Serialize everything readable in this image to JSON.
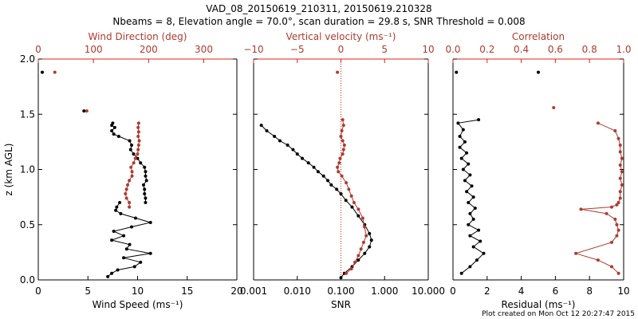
{
  "header": {
    "title": "VAD_08_20150619_210311, 20150619.210328",
    "subtitle": "Nbeams = 8, Elevation angle = 70.0°, scan duration = 29.8 s, SNR Threshold = 0.008"
  },
  "footer": "Plot created on Mon Oct 12 20:27:47 2015",
  "colors": {
    "primary": "#000000",
    "secondary": "#b03a2e",
    "secondary_axis": "#e0201a"
  },
  "chart_data": [
    {
      "type": "line",
      "ylabel": "z (km AGL)",
      "ylim": [
        0,
        2.0
      ],
      "yticks": [
        "0.0",
        "0.5",
        "1.0",
        "1.5",
        "2.0"
      ],
      "bottom_axis": {
        "label": "Wind Speed (ms⁻¹)",
        "lim": [
          0,
          20
        ],
        "ticks": [
          "0",
          "5",
          "10",
          "15",
          "20"
        ]
      },
      "top_axis": {
        "label": "Wind Direction (deg)",
        "lim": [
          0,
          360
        ],
        "ticks": [
          "0",
          "100",
          "200",
          "300"
        ]
      },
      "series": [
        {
          "name": "Wind Speed",
          "axis": "bottom",
          "x": [
            7.5,
            7.4,
            7.7,
            7.4,
            7.6,
            8.1,
            9.2,
            9.4,
            9.3,
            9.6,
            10.0,
            10.3,
            10.7,
            10.8,
            10.8,
            10.9,
            10.6,
            10.7,
            10.7,
            10.8,
            10.8
          ],
          "y": [
            1.42,
            1.4,
            1.38,
            1.35,
            1.32,
            1.3,
            1.26,
            1.22,
            1.18,
            1.14,
            1.1,
            1.06,
            1.02,
            0.98,
            0.94,
            0.9,
            0.86,
            0.82,
            0.78,
            0.74,
            0.7
          ]
        },
        {
          "name": "Wind Speed low",
          "axis": "bottom",
          "x": [
            8.2,
            7.9,
            7.8,
            8.3,
            9.8,
            11.3,
            9.4,
            7.6,
            8.6,
            7.4,
            9.2,
            8.9,
            11.3,
            8.6,
            10.3,
            9.7,
            8.0,
            7.4,
            7.0
          ],
          "y": [
            0.7,
            0.66,
            0.63,
            0.6,
            0.56,
            0.52,
            0.48,
            0.44,
            0.4,
            0.36,
            0.32,
            0.28,
            0.24,
            0.2,
            0.16,
            0.12,
            0.09,
            0.06,
            0.03
          ]
        },
        {
          "name": "Wind Direction",
          "axis": "top",
          "x": [
            182,
            181,
            182,
            181,
            183,
            182,
            181,
            180,
            176,
            173,
            168,
            170,
            170,
            165,
            162,
            160,
            158,
            160,
            165,
            165
          ],
          "y": [
            1.42,
            1.38,
            1.34,
            1.3,
            1.26,
            1.22,
            1.18,
            1.14,
            1.1,
            1.06,
            1.02,
            0.98,
            0.94,
            0.9,
            0.86,
            0.82,
            0.78,
            0.74,
            0.7,
            0.66
          ]
        }
      ],
      "isolated_points": [
        {
          "axis": "bottom",
          "x": 0.4,
          "y": 1.88
        },
        {
          "axis": "top",
          "x": 30,
          "y": 1.88
        },
        {
          "axis": "bottom",
          "x": 4.6,
          "y": 1.53
        },
        {
          "axis": "top",
          "x": 88,
          "y": 1.53
        }
      ]
    },
    {
      "type": "line",
      "bottom_axis": {
        "label": "SNR",
        "scale": "log",
        "lim": [
          0.001,
          10.0
        ],
        "ticks": [
          "0.001",
          "0.010",
          "0.100",
          "1.000",
          "10.000"
        ]
      },
      "top_axis": {
        "label": "Vertical velocity (ms⁻¹)",
        "lim": [
          -10,
          10
        ],
        "ticks": [
          "−10",
          "−5",
          "0",
          "5",
          "10"
        ]
      },
      "series": [
        {
          "name": "SNR",
          "axis": "bottom",
          "x": [
            0.0015,
            0.002,
            0.003,
            0.004,
            0.006,
            0.008,
            0.01,
            0.013,
            0.018,
            0.024,
            0.03,
            0.04,
            0.05,
            0.06,
            0.08,
            0.1,
            0.13,
            0.18,
            0.25,
            0.35,
            0.45,
            0.5,
            0.45,
            0.35,
            0.25,
            0.18,
            0.12,
            0.1
          ],
          "y": [
            1.4,
            1.35,
            1.3,
            1.26,
            1.22,
            1.18,
            1.14,
            1.1,
            1.06,
            1.02,
            0.98,
            0.94,
            0.9,
            0.86,
            0.82,
            0.78,
            0.72,
            0.66,
            0.58,
            0.5,
            0.42,
            0.36,
            0.3,
            0.24,
            0.18,
            0.12,
            0.06,
            0.02
          ]
        },
        {
          "name": "Vertical velocity",
          "axis": "top",
          "x": [
            0.2,
            0.3,
            0.1,
            0.0,
            0.2,
            0.4,
            0.3,
            0.2,
            -0.1,
            -0.2,
            -0.4,
            -0.3,
            0.1,
            0.6,
            0.9,
            1.2,
            1.5,
            2.0,
            2.5,
            2.7,
            2.9,
            2.6,
            2.3,
            2.0,
            1.6,
            1.2,
            0.6
          ],
          "y": [
            1.45,
            1.4,
            1.35,
            1.3,
            1.26,
            1.22,
            1.18,
            1.14,
            1.1,
            1.06,
            1.02,
            0.98,
            0.94,
            0.88,
            0.82,
            0.76,
            0.7,
            0.64,
            0.56,
            0.48,
            0.4,
            0.34,
            0.28,
            0.22,
            0.16,
            0.1,
            0.06
          ]
        }
      ],
      "isolated_points": [
        {
          "axis": "top",
          "x": -0.4,
          "y": 1.88
        }
      ]
    },
    {
      "type": "line",
      "bottom_axis": {
        "label": "Residual (ms⁻¹)",
        "lim": [
          0,
          10
        ],
        "ticks": [
          "0",
          "2",
          "4",
          "6",
          "8",
          "10"
        ]
      },
      "top_axis": {
        "label": "Correlation",
        "lim": [
          0,
          1.0
        ],
        "ticks": [
          "0.0",
          "0.2",
          "0.4",
          "0.6",
          "0.8",
          "1.0"
        ]
      },
      "series": [
        {
          "name": "Residual",
          "axis": "bottom",
          "x": [
            1.5,
            0.3,
            0.6,
            0.4,
            0.7,
            0.4,
            0.8,
            0.5,
            0.9,
            0.6,
            1.0,
            0.7,
            1.1,
            0.8,
            1.2,
            0.9,
            1.3,
            1.0,
            1.2,
            0.9,
            1.5,
            1.0,
            1.6,
            1.2,
            1.8,
            1.4,
            1.0,
            0.5
          ],
          "y": [
            1.45,
            1.42,
            1.36,
            1.3,
            1.25,
            1.2,
            1.15,
            1.1,
            1.05,
            1.0,
            0.95,
            0.9,
            0.85,
            0.8,
            0.75,
            0.7,
            0.65,
            0.6,
            0.55,
            0.5,
            0.45,
            0.4,
            0.35,
            0.3,
            0.24,
            0.18,
            0.12,
            0.06
          ]
        },
        {
          "name": "Correlation",
          "axis": "top",
          "x": [
            0.85,
            0.95,
            0.97,
            0.98,
            0.98,
            0.99,
            0.98,
            0.99,
            0.98,
            0.99,
            0.98,
            0.98,
            0.97,
            0.96,
            0.93,
            0.75,
            0.9,
            0.95,
            0.96,
            0.97,
            0.96,
            0.93,
            0.72,
            0.85,
            0.93,
            0.97
          ],
          "y": [
            1.42,
            1.35,
            1.28,
            1.22,
            1.16,
            1.1,
            1.04,
            0.98,
            0.92,
            0.86,
            0.8,
            0.74,
            0.7,
            0.68,
            0.66,
            0.64,
            0.6,
            0.55,
            0.5,
            0.45,
            0.4,
            0.34,
            0.24,
            0.18,
            0.12,
            0.06
          ]
        }
      ],
      "isolated_points": [
        {
          "axis": "bottom",
          "x": 0.2,
          "y": 1.88
        },
        {
          "axis": "bottom",
          "x": 5.0,
          "y": 1.88
        },
        {
          "axis": "top",
          "x": 0.59,
          "y": 1.56
        }
      ]
    }
  ]
}
